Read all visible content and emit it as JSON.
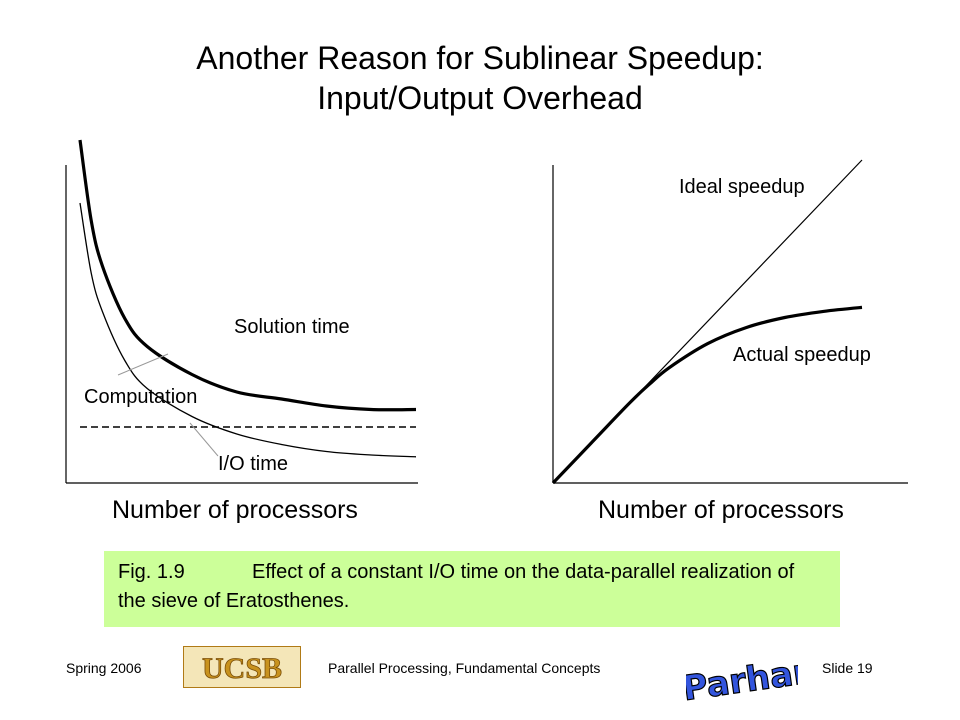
{
  "slide": {
    "title_line1": "Another Reason for Sublinear Speedup:",
    "title_line2": "Input/Output Overhead"
  },
  "chart_data": [
    {
      "type": "line",
      "title": "",
      "xlabel": "Number of processors",
      "ylabel": "",
      "xlim": [
        1,
        16
      ],
      "ylim": [
        0,
        1
      ],
      "grid": false,
      "series": [
        {
          "name": "Solution time",
          "x": [
            1,
            1.5,
            2,
            3,
            4,
            6,
            8,
            10,
            12,
            14,
            16
          ],
          "values": [
            0.98,
            0.75,
            0.62,
            0.47,
            0.39,
            0.31,
            0.26,
            0.24,
            0.22,
            0.21,
            0.21
          ]
        },
        {
          "name": "Computation",
          "x": [
            1,
            1.5,
            2,
            3,
            4,
            6,
            8,
            10,
            12,
            14,
            16
          ],
          "values": [
            0.8,
            0.6,
            0.49,
            0.35,
            0.27,
            0.19,
            0.14,
            0.11,
            0.09,
            0.08,
            0.075
          ]
        },
        {
          "name": "I/O time",
          "x": [
            1,
            16
          ],
          "values": [
            0.16,
            0.16
          ]
        }
      ],
      "annotations": [
        "Solution time",
        "Computation",
        "I/O time"
      ]
    },
    {
      "type": "line",
      "title": "",
      "xlabel": "Number of processors",
      "ylabel": "",
      "xlim": [
        0,
        16
      ],
      "ylim": [
        0,
        16
      ],
      "grid": false,
      "series": [
        {
          "name": "Ideal speedup",
          "x": [
            0,
            16
          ],
          "values": [
            0,
            16
          ]
        },
        {
          "name": "Actual speedup",
          "x": [
            0,
            2,
            4,
            5,
            6,
            8,
            10,
            12,
            14,
            16
          ],
          "values": [
            0,
            2,
            4,
            4.9,
            5.7,
            6.9,
            7.7,
            8.2,
            8.5,
            8.7
          ]
        }
      ],
      "annotations": [
        "Ideal speedup",
        "Actual speedup"
      ]
    }
  ],
  "caption": {
    "figure_label": "Fig. 1.9",
    "text": "Effect of a constant I/O time on the data-parallel realization of the sieve of Eratosthenes."
  },
  "footer": {
    "date": "Spring  2006",
    "course": "Parallel Processing, Fundamental Concepts",
    "slide_number": "Slide 19",
    "logo_left_text": "UCSB",
    "logo_right_text": "B Parhami",
    "logo_left_color": "#c8921e",
    "logo_right_color": "#3355dd"
  },
  "colors": {
    "caption_background": "#ccff99",
    "line": "#000000"
  }
}
